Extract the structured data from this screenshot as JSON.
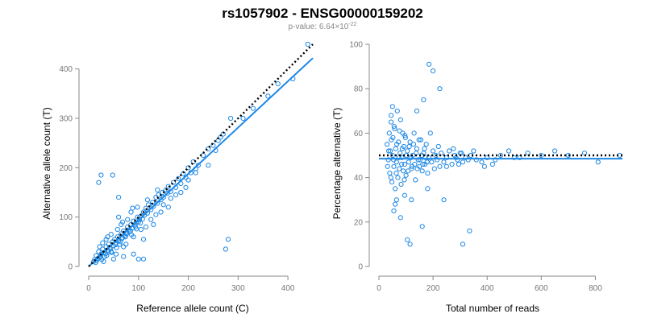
{
  "title": "rs1057902 - ENSG00000159202",
  "subtitle_prefix": "p-value: 6.64×10",
  "subtitle_exp": "-22",
  "colors": {
    "points": "#1e88e5",
    "fit": "#1e88e5",
    "reference": "#000000",
    "axis": "#888888"
  },
  "chart_data": [
    {
      "type": "scatter",
      "title": "",
      "xlabel": "Reference allele count (C)",
      "ylabel": "Alternative allele count (T)",
      "xlim": [
        0,
        450
      ],
      "ylim": [
        0,
        450
      ],
      "xticks": [
        0,
        100,
        200,
        300,
        400
      ],
      "yticks": [
        0,
        100,
        200,
        300,
        400
      ],
      "grid": false,
      "reference_line": {
        "style": "dotted",
        "points": [
          [
            0,
            0
          ],
          [
            450,
            450
          ]
        ]
      },
      "fit_line": {
        "style": "solid",
        "points": [
          [
            0,
            0
          ],
          [
            450,
            422
          ]
        ]
      },
      "points": [
        [
          12,
          14
        ],
        [
          15,
          22
        ],
        [
          18,
          16
        ],
        [
          20,
          30
        ],
        [
          22,
          18
        ],
        [
          25,
          25
        ],
        [
          28,
          35
        ],
        [
          30,
          28
        ],
        [
          32,
          20
        ],
        [
          35,
          40
        ],
        [
          38,
          33
        ],
        [
          40,
          45
        ],
        [
          42,
          38
        ],
        [
          45,
          30
        ],
        [
          48,
          50
        ],
        [
          50,
          42
        ],
        [
          52,
          55
        ],
        [
          55,
          48
        ],
        [
          58,
          60
        ],
        [
          60,
          52
        ],
        [
          62,
          45
        ],
        [
          65,
          66
        ],
        [
          68,
          58
        ],
        [
          70,
          72
        ],
        [
          72,
          62
        ],
        [
          75,
          68
        ],
        [
          78,
          80
        ],
        [
          80,
          74
        ],
        [
          82,
          70
        ],
        [
          85,
          85
        ],
        [
          88,
          78
        ],
        [
          90,
          92
        ],
        [
          92,
          84
        ],
        [
          95,
          88
        ],
        [
          98,
          100
        ],
        [
          100,
          90
        ],
        [
          102,
          95
        ],
        [
          105,
          102
        ],
        [
          108,
          96
        ],
        [
          110,
          110
        ],
        [
          112,
          104
        ],
        [
          115,
          118
        ],
        [
          118,
          108
        ],
        [
          120,
          125
        ],
        [
          125,
          115
        ],
        [
          128,
          130
        ],
        [
          130,
          122
        ],
        [
          135,
          140
        ],
        [
          138,
          128
        ],
        [
          140,
          145
        ],
        [
          145,
          135
        ],
        [
          148,
          150
        ],
        [
          150,
          140
        ],
        [
          155,
          155
        ],
        [
          158,
          148
        ],
        [
          160,
          162
        ],
        [
          165,
          152
        ],
        [
          170,
          170
        ],
        [
          175,
          160
        ],
        [
          180,
          178
        ],
        [
          185,
          168
        ],
        [
          190,
          188
        ],
        [
          195,
          180
        ],
        [
          200,
          200
        ],
        [
          205,
          190
        ],
        [
          210,
          212
        ],
        [
          215,
          198
        ],
        [
          220,
          205
        ],
        [
          230,
          225
        ],
        [
          240,
          238
        ],
        [
          250,
          245
        ],
        [
          260,
          255
        ],
        [
          270,
          268
        ],
        [
          285,
          300
        ],
        [
          310,
          300
        ],
        [
          330,
          320
        ],
        [
          360,
          345
        ],
        [
          380,
          370
        ],
        [
          410,
          380
        ],
        [
          440,
          450
        ],
        [
          20,
          170
        ],
        [
          25,
          185
        ],
        [
          48,
          185
        ],
        [
          60,
          140
        ],
        [
          40,
          30
        ],
        [
          70,
          40
        ],
        [
          90,
          60
        ],
        [
          110,
          55
        ],
        [
          130,
          85
        ],
        [
          60,
          100
        ],
        [
          100,
          15
        ],
        [
          110,
          15
        ],
        [
          90,
          25
        ],
        [
          70,
          20
        ],
        [
          50,
          15
        ],
        [
          30,
          10
        ],
        [
          275,
          35
        ],
        [
          280,
          55
        ],
        [
          55,
          25
        ],
        [
          75,
          45
        ],
        [
          35,
          55
        ],
        [
          45,
          65
        ],
        [
          65,
          85
        ],
        [
          85,
          110
        ],
        [
          105,
          75
        ],
        [
          125,
          95
        ],
        [
          145,
          110
        ],
        [
          160,
          120
        ],
        [
          175,
          145
        ],
        [
          195,
          160
        ],
        [
          10,
          10
        ],
        [
          14,
          8
        ],
        [
          16,
          12
        ],
        [
          24,
          20
        ],
        [
          26,
          14
        ],
        [
          34,
          26
        ],
        [
          36,
          22
        ],
        [
          44,
          36
        ],
        [
          46,
          28
        ],
        [
          54,
          44
        ],
        [
          56,
          38
        ],
        [
          64,
          50
        ],
        [
          66,
          56
        ],
        [
          74,
          60
        ],
        [
          76,
          66
        ],
        [
          84,
          72
        ],
        [
          86,
          64
        ],
        [
          94,
          80
        ],
        [
          96,
          76
        ],
        [
          104,
          88
        ],
        [
          22,
          40
        ],
        [
          28,
          48
        ],
        [
          38,
          60
        ],
        [
          58,
          75
        ],
        [
          68,
          90
        ],
        [
          78,
          95
        ],
        [
          88,
          118
        ],
        [
          98,
          120
        ],
        [
          118,
          135
        ],
        [
          138,
          155
        ],
        [
          115,
          80
        ],
        [
          135,
          105
        ],
        [
          150,
          125
        ],
        [
          165,
          138
        ],
        [
          185,
          150
        ],
        [
          200,
          175
        ],
        [
          215,
          190
        ],
        [
          240,
          205
        ],
        [
          255,
          235
        ],
        [
          265,
          262
        ]
      ]
    },
    {
      "type": "scatter",
      "title": "",
      "xlabel": "Total number of reads",
      "ylabel": "Percentage alternative (T)",
      "xlim": [
        0,
        900
      ],
      "ylim": [
        0,
        100
      ],
      "xticks": [
        0,
        200,
        400,
        600,
        800
      ],
      "yticks": [
        0,
        20,
        40,
        60,
        80,
        100
      ],
      "grid": false,
      "reference_line": {
        "style": "dotted",
        "points": [
          [
            0,
            50
          ],
          [
            900,
            50
          ]
        ]
      },
      "fit_line": {
        "style": "solid",
        "points": [
          [
            0,
            48.5
          ],
          [
            900,
            48.5
          ]
        ]
      },
      "points": [
        [
          30,
          55
        ],
        [
          35,
          48
        ],
        [
          38,
          60
        ],
        [
          40,
          42
        ],
        [
          42,
          52
        ],
        [
          45,
          65
        ],
        [
          48,
          38
        ],
        [
          50,
          50
        ],
        [
          52,
          58
        ],
        [
          55,
          45
        ],
        [
          58,
          62
        ],
        [
          60,
          35
        ],
        [
          62,
          53
        ],
        [
          65,
          47
        ],
        [
          68,
          70
        ],
        [
          70,
          40
        ],
        [
          72,
          56
        ],
        [
          75,
          44
        ],
        [
          78,
          51
        ],
        [
          80,
          66
        ],
        [
          82,
          37
        ],
        [
          85,
          49
        ],
        [
          88,
          60
        ],
        [
          90,
          43
        ],
        [
          92,
          54
        ],
        [
          95,
          46
        ],
        [
          98,
          58
        ],
        [
          100,
          41
        ],
        [
          105,
          52
        ],
        [
          110,
          47
        ],
        [
          115,
          56
        ],
        [
          120,
          44
        ],
        [
          125,
          50
        ],
        [
          130,
          60
        ],
        [
          135,
          39
        ],
        [
          140,
          53
        ],
        [
          145,
          48
        ],
        [
          150,
          45
        ],
        [
          155,
          57
        ],
        [
          160,
          43
        ],
        [
          165,
          51
        ],
        [
          170,
          46
        ],
        [
          175,
          55
        ],
        [
          180,
          42
        ],
        [
          185,
          49
        ],
        [
          190,
          60
        ],
        [
          195,
          47
        ],
        [
          200,
          52
        ],
        [
          205,
          44
        ],
        [
          210,
          50
        ],
        [
          215,
          48
        ],
        [
          220,
          54
        ],
        [
          225,
          45
        ],
        [
          230,
          51
        ],
        [
          240,
          47
        ],
        [
          250,
          49
        ],
        [
          260,
          52
        ],
        [
          270,
          46
        ],
        [
          280,
          50
        ],
        [
          290,
          48
        ],
        [
          300,
          51
        ],
        [
          310,
          47
        ],
        [
          320,
          49
        ],
        [
          340,
          50
        ],
        [
          360,
          48
        ],
        [
          380,
          47
        ],
        [
          400,
          49
        ],
        [
          420,
          46
        ],
        [
          450,
          50
        ],
        [
          480,
          52
        ],
        [
          520,
          49
        ],
        [
          550,
          51
        ],
        [
          600,
          50
        ],
        [
          650,
          52
        ],
        [
          700,
          50
        ],
        [
          760,
          51
        ],
        [
          810,
          47
        ],
        [
          890,
          50
        ],
        [
          185,
          91
        ],
        [
          200,
          88
        ],
        [
          225,
          80
        ],
        [
          165,
          75
        ],
        [
          50,
          72
        ],
        [
          140,
          70
        ],
        [
          105,
          12
        ],
        [
          115,
          10
        ],
        [
          310,
          10
        ],
        [
          335,
          16
        ],
        [
          65,
          30
        ],
        [
          80,
          22
        ],
        [
          160,
          18
        ],
        [
          240,
          30
        ],
        [
          60,
          28
        ],
        [
          95,
          32
        ],
        [
          120,
          30
        ],
        [
          180,
          35
        ],
        [
          45,
          68
        ],
        [
          55,
          25
        ],
        [
          32,
          45
        ],
        [
          36,
          52
        ],
        [
          44,
          40
        ],
        [
          46,
          57
        ],
        [
          54,
          48
        ],
        [
          56,
          63
        ],
        [
          64,
          42
        ],
        [
          66,
          55
        ],
        [
          74,
          49
        ],
        [
          76,
          61
        ],
        [
          84,
          46
        ],
        [
          86,
          53
        ],
        [
          94,
          39
        ],
        [
          96,
          59
        ],
        [
          102,
          50
        ],
        [
          108,
          43
        ],
        [
          112,
          54
        ],
        [
          118,
          49
        ],
        [
          122,
          45
        ],
        [
          128,
          55
        ],
        [
          132,
          46
        ],
        [
          138,
          51
        ],
        [
          142,
          44
        ],
        [
          148,
          57
        ],
        [
          152,
          48
        ],
        [
          158,
          50
        ],
        [
          162,
          46
        ],
        [
          168,
          53
        ],
        [
          172,
          49
        ],
        [
          178,
          47
        ],
        [
          250,
          45
        ],
        [
          275,
          53
        ],
        [
          285,
          49
        ],
        [
          295,
          46
        ],
        [
          305,
          51
        ],
        [
          330,
          48
        ],
        [
          350,
          52
        ],
        [
          390,
          45
        ],
        [
          430,
          48
        ],
        [
          500,
          49
        ]
      ]
    }
  ]
}
